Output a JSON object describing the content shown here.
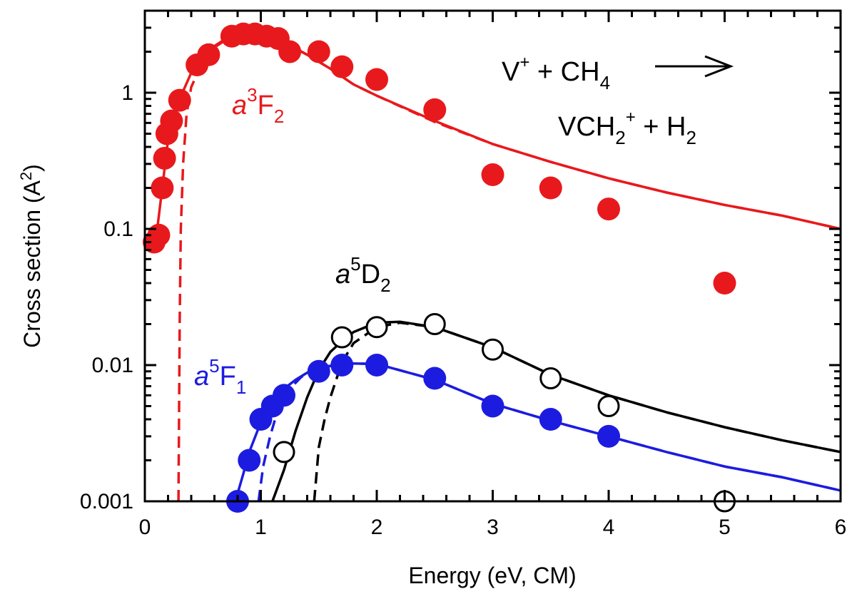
{
  "chart_data": {
    "type": "scatter",
    "title": "",
    "xlabel": "Energy (eV, CM)",
    "ylabel_main": "Cross section (A",
    "ylabel_sup": "2",
    "ylabel_tail": ")",
    "xlim": [
      0,
      6
    ],
    "ylim": [
      0.001,
      4
    ],
    "yscale": "log",
    "grid": false,
    "x_ticks": [
      0,
      1,
      2,
      3,
      4,
      5,
      6
    ],
    "x_tick_labels": [
      "0",
      "1",
      "2",
      "3",
      "4",
      "5",
      "6"
    ],
    "y_ticks": [
      0.001,
      0.01,
      0.1,
      1
    ],
    "y_tick_labels": [
      "0.001",
      "0.01",
      "0.1",
      "1"
    ],
    "annotations": {
      "reaction_reactants": {
        "main": "V",
        "sup": "+",
        "mid": " + CH",
        "sub": "4"
      },
      "reaction_products": {
        "main": "VCH",
        "sub": "2",
        "sup": "+",
        "tail": " + H",
        "sub2": "2"
      },
      "label_a3F2": {
        "italic": "a",
        "sup": "3",
        "main": "F",
        "sub": "2"
      },
      "label_a5D2": {
        "italic": "a",
        "sup": "5",
        "main": "D",
        "sub": "2"
      },
      "label_a5F1": {
        "italic": "a",
        "sup": "5",
        "main": "F",
        "sub": "1"
      }
    },
    "series": [
      {
        "key": "a3F2",
        "color": "#e8191c",
        "marker": "filled-circle",
        "points": [
          [
            0.08,
            0.08
          ],
          [
            0.12,
            0.09
          ],
          [
            0.15,
            0.2
          ],
          [
            0.17,
            0.33
          ],
          [
            0.19,
            0.5
          ],
          [
            0.23,
            0.62
          ],
          [
            0.3,
            0.88
          ],
          [
            0.45,
            1.6
          ],
          [
            0.55,
            1.9
          ],
          [
            0.75,
            2.6
          ],
          [
            0.85,
            2.7
          ],
          [
            0.95,
            2.7
          ],
          [
            1.05,
            2.6
          ],
          [
            1.15,
            2.5
          ],
          [
            1.25,
            2.0
          ],
          [
            1.5,
            2.0
          ],
          [
            1.7,
            1.55
          ],
          [
            2.0,
            1.25
          ],
          [
            2.5,
            0.75
          ],
          [
            3.0,
            0.25
          ],
          [
            3.5,
            0.2
          ],
          [
            4.0,
            0.14
          ],
          [
            5.0,
            0.04
          ]
        ],
        "fit_solid": [
          [
            0.1,
            0.09
          ],
          [
            0.15,
            0.2
          ],
          [
            0.2,
            0.45
          ],
          [
            0.3,
            0.9
          ],
          [
            0.4,
            1.4
          ],
          [
            0.5,
            1.8
          ],
          [
            0.6,
            2.2
          ],
          [
            0.7,
            2.5
          ],
          [
            0.8,
            2.65
          ],
          [
            0.9,
            2.7
          ],
          [
            1.0,
            2.65
          ],
          [
            1.1,
            2.55
          ],
          [
            1.2,
            2.35
          ],
          [
            1.4,
            1.9
          ],
          [
            1.6,
            1.5
          ],
          [
            1.8,
            1.15
          ],
          [
            2.0,
            0.95
          ],
          [
            2.5,
            0.62
          ],
          [
            3.0,
            0.42
          ],
          [
            3.5,
            0.31
          ],
          [
            4.0,
            0.235
          ],
          [
            4.5,
            0.185
          ],
          [
            5.0,
            0.15
          ],
          [
            5.5,
            0.125
          ],
          [
            6.0,
            0.1
          ]
        ],
        "fit_dashed": [
          [
            0.29,
            0.001
          ],
          [
            0.3,
            0.02
          ],
          [
            0.31,
            0.1
          ],
          [
            0.33,
            0.3
          ],
          [
            0.36,
            0.7
          ],
          [
            0.4,
            1.1
          ],
          [
            0.5,
            1.7
          ],
          [
            0.6,
            2.15
          ],
          [
            0.7,
            2.45
          ],
          [
            0.8,
            2.6
          ],
          [
            0.9,
            2.7
          ],
          [
            1.0,
            2.65
          ],
          [
            1.1,
            2.55
          ],
          [
            1.2,
            2.35
          ],
          [
            1.4,
            1.9
          ],
          [
            1.6,
            1.5
          ],
          [
            1.8,
            1.15
          ],
          [
            2.0,
            0.95
          ],
          [
            2.5,
            0.61
          ],
          [
            3.0,
            0.42
          ],
          [
            3.5,
            0.31
          ],
          [
            4.0,
            0.235
          ],
          [
            4.5,
            0.185
          ],
          [
            5.0,
            0.15
          ],
          [
            5.5,
            0.125
          ],
          [
            6.0,
            0.1
          ]
        ]
      },
      {
        "key": "a5D2",
        "color": "#000000",
        "marker": "open-circle",
        "points": [
          [
            1.2,
            0.0023
          ],
          [
            1.7,
            0.016
          ],
          [
            2.0,
            0.019
          ],
          [
            2.5,
            0.02
          ],
          [
            3.0,
            0.013
          ],
          [
            3.5,
            0.008
          ],
          [
            4.0,
            0.005
          ],
          [
            5.0,
            0.001
          ]
        ],
        "fit_solid": [
          [
            1.1,
            0.001
          ],
          [
            1.2,
            0.0017
          ],
          [
            1.3,
            0.0033
          ],
          [
            1.4,
            0.0058
          ],
          [
            1.5,
            0.0092
          ],
          [
            1.6,
            0.0125
          ],
          [
            1.7,
            0.015
          ],
          [
            1.8,
            0.0175
          ],
          [
            2.0,
            0.0205
          ],
          [
            2.2,
            0.0208
          ],
          [
            2.5,
            0.019
          ],
          [
            3.0,
            0.0135
          ],
          [
            3.5,
            0.0085
          ],
          [
            4.0,
            0.006
          ],
          [
            4.5,
            0.0045
          ],
          [
            5.0,
            0.0035
          ],
          [
            5.5,
            0.0028
          ],
          [
            6.0,
            0.0023
          ]
        ],
        "fit_dashed": [
          [
            1.46,
            0.001
          ],
          [
            1.5,
            0.0025
          ],
          [
            1.55,
            0.004
          ],
          [
            1.6,
            0.0058
          ],
          [
            1.7,
            0.0105
          ],
          [
            1.8,
            0.0145
          ],
          [
            2.0,
            0.019
          ],
          [
            2.2,
            0.0205
          ],
          [
            2.5,
            0.019
          ],
          [
            3.0,
            0.0135
          ],
          [
            3.5,
            0.0085
          ],
          [
            4.0,
            0.006
          ],
          [
            4.5,
            0.0045
          ],
          [
            5.0,
            0.0035
          ],
          [
            5.5,
            0.0028
          ],
          [
            6.0,
            0.0023
          ]
        ]
      },
      {
        "key": "a5F1",
        "color": "#1c1ce0",
        "marker": "filled-circle",
        "points": [
          [
            0.8,
            0.001
          ],
          [
            0.9,
            0.002
          ],
          [
            1.0,
            0.004
          ],
          [
            1.1,
            0.005
          ],
          [
            1.2,
            0.006
          ],
          [
            1.5,
            0.009
          ],
          [
            1.7,
            0.01
          ],
          [
            2.0,
            0.01
          ],
          [
            2.5,
            0.008
          ],
          [
            3.0,
            0.005
          ],
          [
            3.5,
            0.004
          ],
          [
            4.0,
            0.003
          ]
        ],
        "fit_solid": [
          [
            0.78,
            0.001
          ],
          [
            0.85,
            0.0016
          ],
          [
            0.9,
            0.0023
          ],
          [
            1.0,
            0.0038
          ],
          [
            1.1,
            0.0053
          ],
          [
            1.2,
            0.0067
          ],
          [
            1.3,
            0.0078
          ],
          [
            1.4,
            0.0088
          ],
          [
            1.5,
            0.0095
          ],
          [
            1.7,
            0.0103
          ],
          [
            2.0,
            0.0102
          ],
          [
            2.5,
            0.0078
          ],
          [
            3.0,
            0.0052
          ],
          [
            3.5,
            0.0039
          ],
          [
            4.0,
            0.003
          ],
          [
            4.5,
            0.0023
          ],
          [
            5.0,
            0.0018
          ],
          [
            5.5,
            0.0015
          ],
          [
            6.0,
            0.0012
          ]
        ],
        "fit_dashed": [
          [
            0.98,
            0.001
          ],
          [
            1.02,
            0.0018
          ],
          [
            1.08,
            0.003
          ],
          [
            1.15,
            0.0048
          ],
          [
            1.25,
            0.0067
          ],
          [
            1.35,
            0.0082
          ],
          [
            1.5,
            0.0094
          ],
          [
            1.7,
            0.0103
          ],
          [
            2.0,
            0.0102
          ],
          [
            2.5,
            0.0078
          ],
          [
            3.0,
            0.0052
          ],
          [
            3.5,
            0.0039
          ],
          [
            4.0,
            0.003
          ],
          [
            4.5,
            0.0023
          ],
          [
            5.0,
            0.0018
          ],
          [
            5.5,
            0.0015
          ],
          [
            6.0,
            0.0012
          ]
        ]
      }
    ]
  }
}
